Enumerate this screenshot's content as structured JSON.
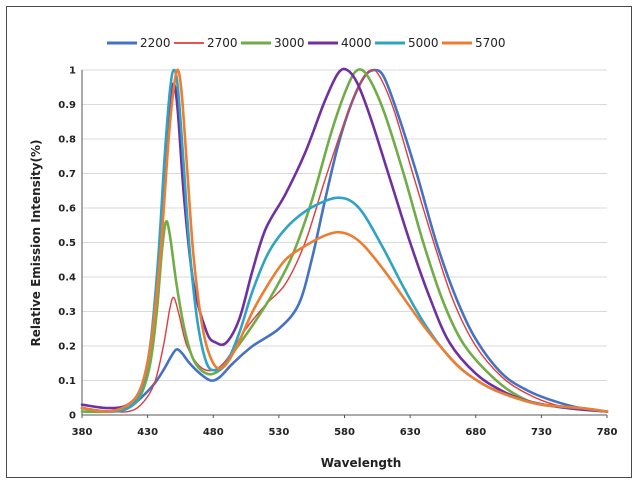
{
  "chart_data": {
    "type": "line",
    "title": "",
    "xlabel": "Wavelength",
    "ylabel": "Relative Emission Intensity(%)",
    "xlim": [
      380,
      780
    ],
    "ylim": [
      0,
      1
    ],
    "x_ticks": [
      380,
      430,
      480,
      530,
      580,
      630,
      680,
      730,
      780
    ],
    "y_ticks": [
      0,
      0.1,
      0.2,
      0.3,
      0.4,
      0.5,
      0.6,
      0.7,
      0.8,
      0.9,
      1
    ],
    "y_tick_labels": [
      "0",
      "0.1",
      "0.2",
      "0.3",
      "0.4",
      "0.5",
      "0.6",
      "0.7",
      "0.8",
      "0.9",
      "1"
    ],
    "grid": "horizontal",
    "legend_position": "top",
    "series": [
      {
        "name": "2200",
        "color": "#4472c4",
        "stroke_width": 2.6,
        "points": [
          [
            380,
            0.02
          ],
          [
            400,
            0.01
          ],
          [
            415,
            0.02
          ],
          [
            425,
            0.05
          ],
          [
            435,
            0.09
          ],
          [
            442,
            0.13
          ],
          [
            448,
            0.17
          ],
          [
            452,
            0.19
          ],
          [
            456,
            0.18
          ],
          [
            462,
            0.15
          ],
          [
            470,
            0.12
          ],
          [
            478,
            0.1
          ],
          [
            485,
            0.11
          ],
          [
            495,
            0.15
          ],
          [
            510,
            0.2
          ],
          [
            530,
            0.25
          ],
          [
            545,
            0.32
          ],
          [
            555,
            0.45
          ],
          [
            565,
            0.62
          ],
          [
            575,
            0.78
          ],
          [
            585,
            0.9
          ],
          [
            595,
            0.98
          ],
          [
            603,
            1.0
          ],
          [
            610,
            0.98
          ],
          [
            620,
            0.88
          ],
          [
            635,
            0.7
          ],
          [
            650,
            0.5
          ],
          [
            665,
            0.34
          ],
          [
            680,
            0.22
          ],
          [
            700,
            0.12
          ],
          [
            720,
            0.07
          ],
          [
            740,
            0.04
          ],
          [
            760,
            0.02
          ],
          [
            780,
            0.01
          ]
        ]
      },
      {
        "name": "2700",
        "color": "#e03c3c",
        "stroke_width": 1.4,
        "points": [
          [
            380,
            0.01
          ],
          [
            400,
            0.01
          ],
          [
            415,
            0.01
          ],
          [
            425,
            0.03
          ],
          [
            435,
            0.09
          ],
          [
            442,
            0.2
          ],
          [
            447,
            0.31
          ],
          [
            450,
            0.34
          ],
          [
            454,
            0.29
          ],
          [
            460,
            0.2
          ],
          [
            470,
            0.14
          ],
          [
            480,
            0.13
          ],
          [
            490,
            0.16
          ],
          [
            505,
            0.25
          ],
          [
            520,
            0.32
          ],
          [
            535,
            0.38
          ],
          [
            550,
            0.5
          ],
          [
            565,
            0.68
          ],
          [
            580,
            0.85
          ],
          [
            592,
            0.96
          ],
          [
            600,
            1.0
          ],
          [
            607,
            0.98
          ],
          [
            618,
            0.88
          ],
          [
            632,
            0.7
          ],
          [
            648,
            0.5
          ],
          [
            663,
            0.33
          ],
          [
            680,
            0.2
          ],
          [
            700,
            0.11
          ],
          [
            720,
            0.06
          ],
          [
            740,
            0.03
          ],
          [
            760,
            0.02
          ],
          [
            780,
            0.01
          ]
        ]
      },
      {
        "name": "3000",
        "color": "#70ad47",
        "stroke_width": 2.6,
        "points": [
          [
            380,
            0.01
          ],
          [
            400,
            0.01
          ],
          [
            415,
            0.02
          ],
          [
            425,
            0.06
          ],
          [
            432,
            0.15
          ],
          [
            437,
            0.3
          ],
          [
            441,
            0.48
          ],
          [
            444,
            0.56
          ],
          [
            447,
            0.52
          ],
          [
            452,
            0.38
          ],
          [
            458,
            0.25
          ],
          [
            465,
            0.16
          ],
          [
            475,
            0.12
          ],
          [
            485,
            0.13
          ],
          [
            495,
            0.18
          ],
          [
            510,
            0.26
          ],
          [
            525,
            0.35
          ],
          [
            540,
            0.46
          ],
          [
            555,
            0.62
          ],
          [
            570,
            0.82
          ],
          [
            582,
            0.95
          ],
          [
            590,
            1.0
          ],
          [
            598,
            0.98
          ],
          [
            610,
            0.88
          ],
          [
            625,
            0.7
          ],
          [
            640,
            0.5
          ],
          [
            655,
            0.33
          ],
          [
            670,
            0.21
          ],
          [
            690,
            0.12
          ],
          [
            710,
            0.06
          ],
          [
            730,
            0.03
          ],
          [
            760,
            0.02
          ],
          [
            780,
            0.01
          ]
        ]
      },
      {
        "name": "4000",
        "color": "#7030a0",
        "stroke_width": 2.6,
        "points": [
          [
            380,
            0.03
          ],
          [
            400,
            0.02
          ],
          [
            415,
            0.03
          ],
          [
            425,
            0.08
          ],
          [
            432,
            0.2
          ],
          [
            438,
            0.42
          ],
          [
            443,
            0.7
          ],
          [
            447,
            0.9
          ],
          [
            450,
            0.96
          ],
          [
            453,
            0.88
          ],
          [
            458,
            0.62
          ],
          [
            465,
            0.38
          ],
          [
            475,
            0.24
          ],
          [
            482,
            0.21
          ],
          [
            490,
            0.21
          ],
          [
            500,
            0.28
          ],
          [
            510,
            0.42
          ],
          [
            520,
            0.54
          ],
          [
            535,
            0.64
          ],
          [
            550,
            0.76
          ],
          [
            565,
            0.91
          ],
          [
            575,
            0.99
          ],
          [
            582,
            1.0
          ],
          [
            590,
            0.96
          ],
          [
            600,
            0.86
          ],
          [
            615,
            0.68
          ],
          [
            630,
            0.5
          ],
          [
            645,
            0.34
          ],
          [
            660,
            0.21
          ],
          [
            680,
            0.12
          ],
          [
            700,
            0.07
          ],
          [
            720,
            0.04
          ],
          [
            750,
            0.02
          ],
          [
            780,
            0.01
          ]
        ]
      },
      {
        "name": "5000",
        "color": "#2ea3c4",
        "stroke_width": 2.6,
        "points": [
          [
            380,
            0.02
          ],
          [
            400,
            0.01
          ],
          [
            415,
            0.02
          ],
          [
            425,
            0.07
          ],
          [
            432,
            0.2
          ],
          [
            438,
            0.45
          ],
          [
            443,
            0.75
          ],
          [
            447,
            0.94
          ],
          [
            450,
            1.0
          ],
          [
            453,
            0.95
          ],
          [
            457,
            0.75
          ],
          [
            462,
            0.48
          ],
          [
            468,
            0.27
          ],
          [
            475,
            0.15
          ],
          [
            482,
            0.13
          ],
          [
            490,
            0.15
          ],
          [
            500,
            0.24
          ],
          [
            510,
            0.36
          ],
          [
            522,
            0.47
          ],
          [
            535,
            0.54
          ],
          [
            550,
            0.59
          ],
          [
            565,
            0.62
          ],
          [
            575,
            0.63
          ],
          [
            585,
            0.62
          ],
          [
            595,
            0.58
          ],
          [
            610,
            0.48
          ],
          [
            625,
            0.37
          ],
          [
            640,
            0.27
          ],
          [
            655,
            0.19
          ],
          [
            670,
            0.13
          ],
          [
            690,
            0.08
          ],
          [
            710,
            0.05
          ],
          [
            730,
            0.03
          ],
          [
            760,
            0.02
          ],
          [
            780,
            0.01
          ]
        ]
      },
      {
        "name": "5700",
        "color": "#ed7d31",
        "stroke_width": 2.6,
        "points": [
          [
            380,
            0.02
          ],
          [
            400,
            0.01
          ],
          [
            415,
            0.03
          ],
          [
            425,
            0.08
          ],
          [
            433,
            0.22
          ],
          [
            440,
            0.48
          ],
          [
            446,
            0.8
          ],
          [
            450,
            0.95
          ],
          [
            453,
            1.0
          ],
          [
            456,
            0.93
          ],
          [
            460,
            0.72
          ],
          [
            465,
            0.46
          ],
          [
            472,
            0.25
          ],
          [
            480,
            0.15
          ],
          [
            488,
            0.14
          ],
          [
            498,
            0.2
          ],
          [
            510,
            0.3
          ],
          [
            522,
            0.38
          ],
          [
            535,
            0.45
          ],
          [
            550,
            0.49
          ],
          [
            565,
            0.52
          ],
          [
            575,
            0.53
          ],
          [
            585,
            0.52
          ],
          [
            595,
            0.49
          ],
          [
            610,
            0.42
          ],
          [
            625,
            0.34
          ],
          [
            640,
            0.26
          ],
          [
            655,
            0.19
          ],
          [
            670,
            0.13
          ],
          [
            690,
            0.08
          ],
          [
            710,
            0.05
          ],
          [
            730,
            0.03
          ],
          [
            760,
            0.02
          ],
          [
            780,
            0.01
          ]
        ]
      }
    ]
  }
}
